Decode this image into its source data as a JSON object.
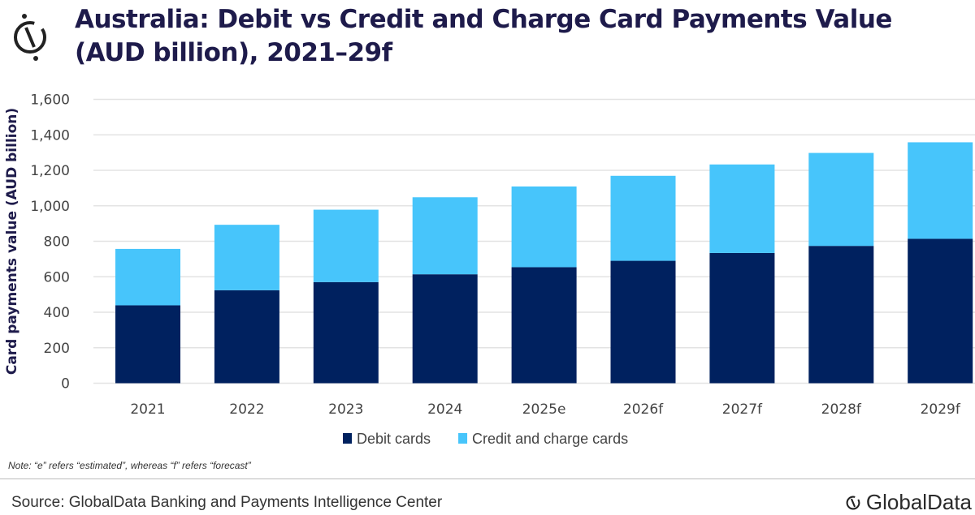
{
  "header": {
    "title_line1": "Australia: Debit vs Credit and Charge Card Payments Value",
    "title_line2": "(AUD billion), 2021–29f"
  },
  "chart_data": {
    "type": "bar",
    "stacked": true,
    "categories": [
      "2021",
      "2022",
      "2023",
      "2024",
      "2025e",
      "2026f",
      "2027f",
      "2028f",
      "2029f"
    ],
    "series": [
      {
        "name": "Debit cards",
        "color": "#00215f",
        "values": [
          439,
          524,
          570,
          614,
          654,
          690,
          734,
          774,
          814
        ]
      },
      {
        "name": "Credit and charge cards",
        "color": "#47c5fb",
        "values": [
          318,
          369,
          408,
          434,
          455,
          479,
          499,
          524,
          544
        ]
      }
    ],
    "ylabel": "Card payments value (AUD billion)",
    "xlabel": "",
    "ylim": [
      0,
      1600
    ],
    "yticks": [
      "0",
      "200",
      "400",
      "600",
      "800",
      "1,000",
      "1,200",
      "1,400",
      "1,600"
    ],
    "grid": true,
    "legend": "bottom"
  },
  "footer": {
    "note": "Note: “e” refers “estimated”, whereas “f” refers “forecast”",
    "source": "Source: GlobalData Banking and Payments Intelligence Center",
    "brand": "GlobalData"
  }
}
